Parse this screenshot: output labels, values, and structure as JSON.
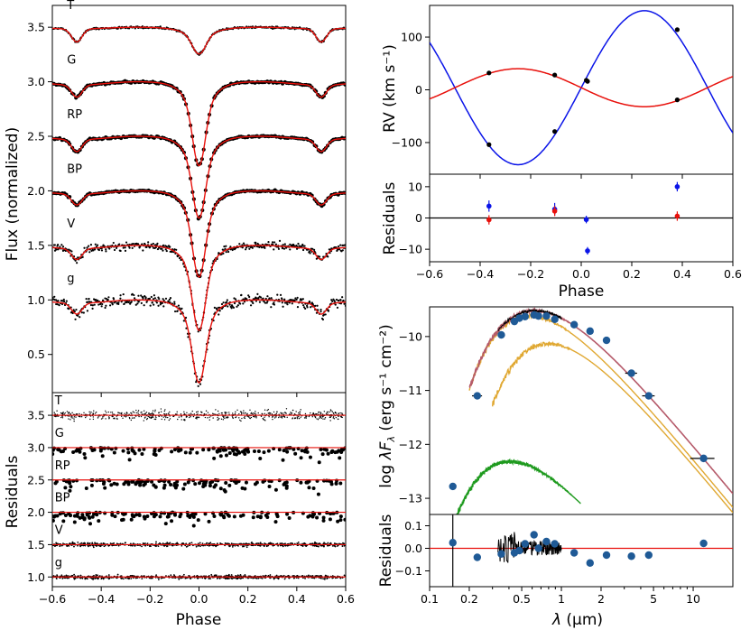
{
  "lc": {
    "x_range": [
      -0.6,
      0.6
    ],
    "y_range": [
      0.15,
      3.7
    ],
    "x_ticks": [
      "−0.6",
      "−0.4",
      "−0.2",
      "0.0",
      "0.2",
      "0.4",
      "0.6"
    ],
    "y_ticks": [
      {
        "v": 0.5,
        "l": "0.5"
      },
      {
        "v": 1.0,
        "l": "1.0"
      },
      {
        "v": 1.5,
        "l": "1.5"
      },
      {
        "v": 2.0,
        "l": "2.0"
      },
      {
        "v": 2.5,
        "l": "2.5"
      },
      {
        "v": 3.0,
        "l": "3.0"
      },
      {
        "v": 3.5,
        "l": "3.5"
      }
    ],
    "ylabel": "Flux (normalized)",
    "model_color": "#e8100b",
    "bands": [
      {
        "name": "T",
        "base": 3.5,
        "depth1": 0.23,
        "w1": 0.032,
        "depth2": 0.12,
        "w2": 0.03,
        "kind": "dense",
        "noise": 0.006
      },
      {
        "name": "G",
        "base": 3.0,
        "depth1": 0.74,
        "w1": 0.03,
        "depth2": 0.11,
        "w2": 0.03,
        "kind": "sparse",
        "noise": 0.006
      },
      {
        "name": "RP",
        "base": 2.5,
        "depth1": 0.72,
        "w1": 0.03,
        "depth2": 0.11,
        "w2": 0.03,
        "kind": "sparse",
        "noise": 0.006
      },
      {
        "name": "BP",
        "base": 2.0,
        "depth1": 0.76,
        "w1": 0.03,
        "depth2": 0.1,
        "w2": 0.03,
        "kind": "sparse",
        "noise": 0.006
      },
      {
        "name": "V",
        "base": 1.5,
        "depth1": 0.75,
        "w1": 0.03,
        "depth2": 0.1,
        "w2": 0.03,
        "kind": "dense",
        "noise": 0.025
      },
      {
        "name": "g",
        "base": 1.0,
        "depth1": 0.73,
        "w1": 0.03,
        "depth2": 0.1,
        "w2": 0.03,
        "kind": "dense",
        "noise": 0.035
      }
    ]
  },
  "lcres": {
    "x_range": [
      -0.6,
      0.6
    ],
    "y_range": [
      0.85,
      3.85
    ],
    "x_ticks": [
      "−0.6",
      "−0.4",
      "−0.2",
      "0.0",
      "0.2",
      "0.4",
      "0.6"
    ],
    "y_ticks": [
      {
        "v": 1.0,
        "l": "1.0"
      },
      {
        "v": 1.5,
        "l": "1.5"
      },
      {
        "v": 2.0,
        "l": "2.0"
      },
      {
        "v": 2.5,
        "l": "2.5"
      },
      {
        "v": 3.0,
        "l": "3.0"
      },
      {
        "v": 3.5,
        "l": "3.5"
      }
    ],
    "xlabel": "Phase",
    "ylabel": "Residuals",
    "bands": [
      {
        "name": "T",
        "base": 3.5,
        "kind": "dense",
        "noise": 0.05
      },
      {
        "name": "G",
        "base": 3.0,
        "kind": "sparse",
        "noise": 0.12
      },
      {
        "name": "RP",
        "base": 2.5,
        "kind": "sparse",
        "noise": 0.12
      },
      {
        "name": "BP",
        "base": 2.0,
        "kind": "sparse",
        "noise": 0.12
      },
      {
        "name": "V",
        "base": 1.5,
        "kind": "dense",
        "noise": 0.02
      },
      {
        "name": "g",
        "base": 1.0,
        "kind": "dense",
        "noise": 0.02
      }
    ]
  },
  "rv": {
    "x_range": [
      -0.6,
      0.6
    ],
    "y_range": [
      -160,
      160
    ],
    "x_ticks": [
      "−0.6",
      "−0.4",
      "−0.2",
      "0.0",
      "0.2",
      "0.4",
      "0.6"
    ],
    "y_ticks": [
      {
        "v": -100,
        "l": "−100"
      },
      {
        "v": 0,
        "l": "0"
      },
      {
        "v": 100,
        "l": "100"
      }
    ],
    "ylabel": "RV (km s⁻¹)",
    "gamma": 4,
    "K_blue": 146,
    "K_red": 36,
    "blue_color": "#0a14e8",
    "red_color": "#e8100b",
    "points": [
      {
        "phase": -0.365,
        "rv": -104
      },
      {
        "phase": -0.365,
        "rv": 32
      },
      {
        "phase": -0.105,
        "rv": -79
      },
      {
        "phase": -0.105,
        "rv": 28
      },
      {
        "phase": 0.02,
        "rv": 18
      },
      {
        "phase": 0.025,
        "rv": 16
      },
      {
        "phase": 0.38,
        "rv": 114
      },
      {
        "phase": 0.38,
        "rv": -19
      }
    ]
  },
  "rvres": {
    "x_range": [
      -0.6,
      0.6
    ],
    "y_range": [
      -14,
      14
    ],
    "x_ticks": [
      "−0.6",
      "−0.4",
      "−0.2",
      "0.0",
      "0.2",
      "0.4",
      "0.6"
    ],
    "y_ticks": [
      {
        "v": -10,
        "l": "−10"
      },
      {
        "v": 0,
        "l": "0"
      },
      {
        "v": 10,
        "l": "10"
      }
    ],
    "xlabel": "Phase",
    "ylabel": "Residuals",
    "blue": [
      {
        "phase": -0.365,
        "res": 3.8,
        "err": 1.8
      },
      {
        "phase": -0.105,
        "res": 2.8,
        "err": 2.0
      },
      {
        "phase": 0.02,
        "res": -0.5,
        "err": 1.2
      },
      {
        "phase": 0.025,
        "res": -10.5,
        "err": 1.2
      },
      {
        "phase": 0.38,
        "res": 10.0,
        "err": 1.5
      }
    ],
    "red": [
      {
        "phase": -0.365,
        "res": -0.6,
        "err": 1.5
      },
      {
        "phase": -0.105,
        "res": 2.2,
        "err": 1.6
      },
      {
        "phase": 0.38,
        "res": 0.6,
        "err": 1.5
      }
    ]
  },
  "sed": {
    "x_range": [
      0.1,
      20
    ],
    "y_range": [
      -13.3,
      -9.45
    ],
    "y_ticks": [
      {
        "v": -13,
        "l": "−13"
      },
      {
        "v": -12,
        "l": "−12"
      },
      {
        "v": -11,
        "l": "−11"
      },
      {
        "v": -10,
        "l": "−10"
      }
    ],
    "ylabel": "log λF_λ (erg s⁻¹ cm⁻²)",
    "ylabel_prefix": "log ",
    "ylabel_lambda": "λF",
    "ylabel_sub": "λ",
    "ylabel_units": " (erg s⁻¹ cm⁻²)",
    "total_color": "#b55a6a",
    "comp_color": "#e0a832",
    "hot_color": "#1e9a1e",
    "phot_color": "#1f5a96",
    "photometry": [
      {
        "lam": 0.15,
        "logf": -12.78,
        "dlam": 0.0
      },
      {
        "lam": 0.23,
        "logf": -11.1,
        "dlam": 0.02
      },
      {
        "lam": 0.35,
        "logf": -9.97,
        "dlam": 0.0
      },
      {
        "lam": 0.44,
        "logf": -9.72,
        "dlam": 0.0
      },
      {
        "lam": 0.48,
        "logf": -9.66,
        "dlam": 0.0
      },
      {
        "lam": 0.53,
        "logf": -9.63,
        "dlam": 0.0
      },
      {
        "lam": 0.62,
        "logf": -9.6,
        "dlam": 0.0
      },
      {
        "lam": 0.67,
        "logf": -9.62,
        "dlam": 0.0
      },
      {
        "lam": 0.77,
        "logf": -9.62,
        "dlam": 0.0
      },
      {
        "lam": 0.89,
        "logf": -9.68,
        "dlam": 0.0
      },
      {
        "lam": 1.25,
        "logf": -9.78,
        "dlam": 0.0
      },
      {
        "lam": 1.65,
        "logf": -9.9,
        "dlam": 0.0
      },
      {
        "lam": 2.2,
        "logf": -10.07,
        "dlam": 0.0
      },
      {
        "lam": 3.4,
        "logf": -10.68,
        "dlam": 0.35
      },
      {
        "lam": 4.6,
        "logf": -11.1,
        "dlam": 0.5
      },
      {
        "lam": 12,
        "logf": -12.26,
        "dlam": 2.5
      }
    ]
  },
  "sedres": {
    "x_range": [
      0.1,
      20
    ],
    "y_range": [
      -0.17,
      0.15
    ],
    "x_ticks": [
      {
        "v": 0.1,
        "l": "0.1"
      },
      {
        "v": 0.2,
        "l": "0.2"
      },
      {
        "v": 0.5,
        "l": "0.5"
      },
      {
        "v": 1,
        "l": "1"
      },
      {
        "v": 2,
        "l": "2"
      },
      {
        "v": 5,
        "l": "5"
      },
      {
        "v": 10,
        "l": "10"
      }
    ],
    "y_ticks": [
      {
        "v": -0.1,
        "l": "−0.1"
      },
      {
        "v": 0.0,
        "l": "0.0"
      },
      {
        "v": 0.1,
        "l": "0.1"
      }
    ],
    "xlabel_lambda": "λ",
    "xlabel_units": " (μm)",
    "ylabel": "Residuals",
    "points": [
      {
        "lam": 0.15,
        "res": 0.025
      },
      {
        "lam": 0.23,
        "res": -0.04
      },
      {
        "lam": 0.35,
        "res": -0.025
      },
      {
        "lam": 0.44,
        "res": -0.02
      },
      {
        "lam": 0.48,
        "res": -0.01
      },
      {
        "lam": 0.53,
        "res": 0.02
      },
      {
        "lam": 0.62,
        "res": 0.06
      },
      {
        "lam": 0.67,
        "res": 0.0
      },
      {
        "lam": 0.77,
        "res": 0.03
      },
      {
        "lam": 0.89,
        "res": 0.02
      },
      {
        "lam": 1.25,
        "res": -0.02
      },
      {
        "lam": 1.65,
        "res": -0.065
      },
      {
        "lam": 2.2,
        "res": -0.03
      },
      {
        "lam": 3.4,
        "res": -0.035
      },
      {
        "lam": 4.6,
        "res": -0.03
      },
      {
        "lam": 12,
        "res": 0.022
      }
    ]
  }
}
